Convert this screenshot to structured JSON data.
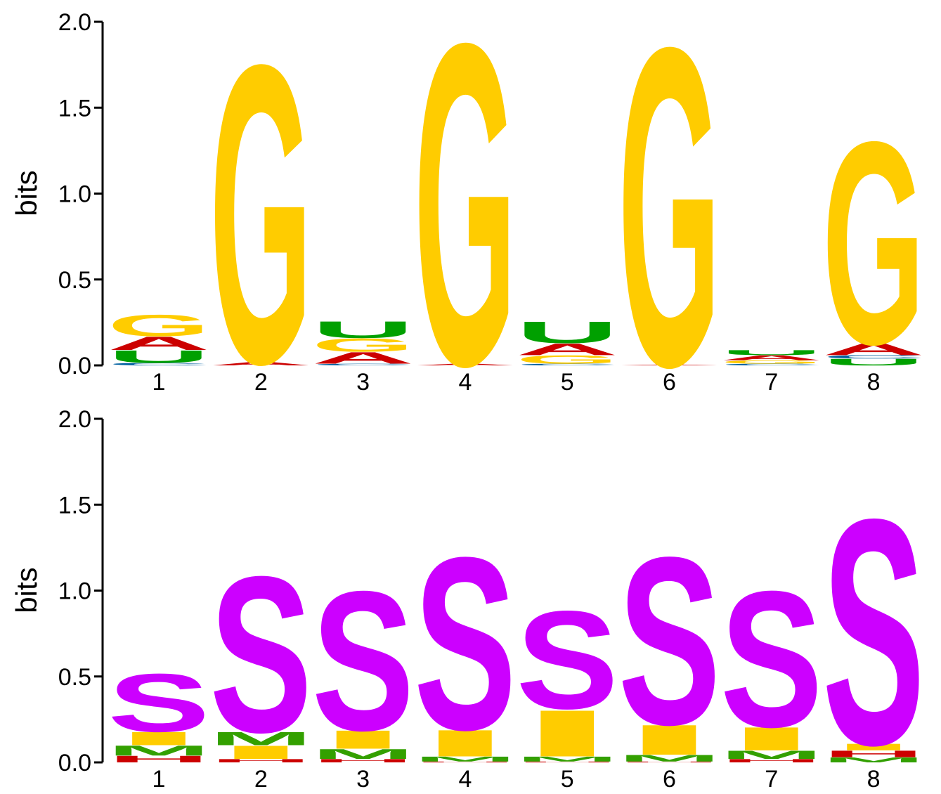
{
  "chart_data": [
    {
      "type": "sequence-logo",
      "ylabel": "bits",
      "ylim": [
        0,
        2.0
      ],
      "yticks": [
        "0.0",
        "0.5",
        "1.0",
        "1.5",
        "2.0"
      ],
      "positions": [
        "1",
        "2",
        "3",
        "4",
        "5",
        "6",
        "7",
        "8"
      ],
      "colors": {
        "G": "#FFCC00",
        "A": "#CC0000",
        "U": "#00A000",
        "C": "#0060A0"
      },
      "stacks": [
        [
          {
            "letter": "C",
            "height": 0.015
          },
          {
            "letter": "U",
            "height": 0.075
          },
          {
            "letter": "A",
            "height": 0.08
          },
          {
            "letter": "G",
            "height": 0.13
          }
        ],
        [
          {
            "letter": "A",
            "height": 0.02
          },
          {
            "letter": "G",
            "height": 1.8
          }
        ],
        [
          {
            "letter": "C",
            "height": 0.01
          },
          {
            "letter": "A",
            "height": 0.07
          },
          {
            "letter": "G",
            "height": 0.08
          },
          {
            "letter": "U",
            "height": 0.1
          }
        ],
        [
          {
            "letter": "A",
            "height": 0.01
          },
          {
            "letter": "G",
            "height": 1.94
          }
        ],
        [
          {
            "letter": "C",
            "height": 0.01
          },
          {
            "letter": "G",
            "height": 0.05
          },
          {
            "letter": "A",
            "height": 0.07
          },
          {
            "letter": "U",
            "height": 0.13
          }
        ],
        [
          {
            "letter": "A",
            "height": 0.005
          },
          {
            "letter": "G",
            "height": 1.92
          }
        ],
        [
          {
            "letter": "C",
            "height": 0.01
          },
          {
            "letter": "G",
            "height": 0.02
          },
          {
            "letter": "A",
            "height": 0.03
          },
          {
            "letter": "U",
            "height": 0.03
          }
        ],
        [
          {
            "letter": "U",
            "height": 0.04
          },
          {
            "letter": "C",
            "height": 0.02
          },
          {
            "letter": "A",
            "height": 0.07
          },
          {
            "letter": "G",
            "height": 1.22
          }
        ]
      ]
    },
    {
      "type": "sequence-logo",
      "ylabel": "bits",
      "ylim": [
        0,
        2.0
      ],
      "yticks": [
        "0.0",
        "0.5",
        "1.0",
        "1.5",
        "2.0"
      ],
      "positions": [
        "1",
        "2",
        "3",
        "4",
        "5",
        "6",
        "7",
        "8"
      ],
      "colors": {
        "S": "#CC00FF",
        "I": "#FFCC00",
        "M": "#33A000",
        "H": "#CC0000"
      },
      "stacks": [
        [
          {
            "letter": "H",
            "height": 0.04
          },
          {
            "letter": "M",
            "height": 0.06
          },
          {
            "letter": "I",
            "height": 0.08
          },
          {
            "letter": "S",
            "height": 0.35
          }
        ],
        [
          {
            "letter": "H",
            "height": 0.02
          },
          {
            "letter": "I",
            "height": 0.08
          },
          {
            "letter": "M",
            "height": 0.08
          },
          {
            "letter": "S",
            "height": 0.94
          }
        ],
        [
          {
            "letter": "H",
            "height": 0.02
          },
          {
            "letter": "M",
            "height": 0.06
          },
          {
            "letter": "I",
            "height": 0.11
          },
          {
            "letter": "S",
            "height": 0.84
          }
        ],
        [
          {
            "letter": "H",
            "height": 0.005
          },
          {
            "letter": "M",
            "height": 0.03
          },
          {
            "letter": "I",
            "height": 0.16
          },
          {
            "letter": "S",
            "height": 1.04
          }
        ],
        [
          {
            "letter": "H",
            "height": 0.005
          },
          {
            "letter": "M",
            "height": 0.03
          },
          {
            "letter": "I",
            "height": 0.28
          },
          {
            "letter": "S",
            "height": 0.59
          }
        ],
        [
          {
            "letter": "H",
            "height": 0.005
          },
          {
            "letter": "M",
            "height": 0.04
          },
          {
            "letter": "I",
            "height": 0.18
          },
          {
            "letter": "S",
            "height": 1.01
          }
        ],
        [
          {
            "letter": "H",
            "height": 0.02
          },
          {
            "letter": "M",
            "height": 0.05
          },
          {
            "letter": "I",
            "height": 0.14
          },
          {
            "letter": "S",
            "height": 0.82
          }
        ],
        [
          {
            "letter": "M",
            "height": 0.03
          },
          {
            "letter": "H",
            "height": 0.04
          },
          {
            "letter": "I",
            "height": 0.04
          },
          {
            "letter": "S",
            "height": 1.36
          }
        ]
      ]
    }
  ]
}
